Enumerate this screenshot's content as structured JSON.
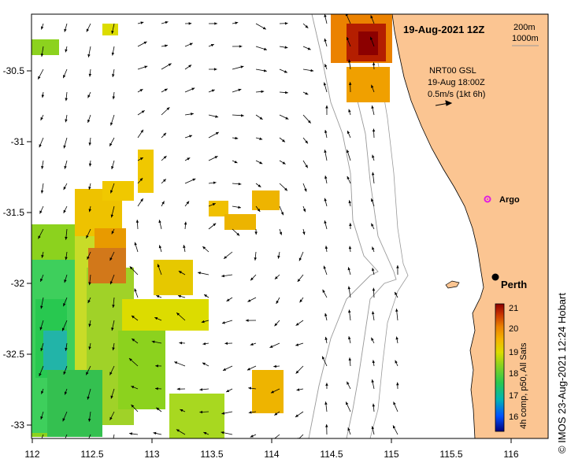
{
  "map": {
    "title": "19-Aug-2021 12Z",
    "isobath_labels": [
      "200m",
      "1000m"
    ],
    "current_label": "NRT00 GSL",
    "current_time": "19-Aug 18:00Z",
    "current_scale": "0.5m/s (1kt 6h)",
    "argo_label": "Argo",
    "city_label": "Perth",
    "land_color": "#fbc592",
    "x_ticks": [
      "112",
      "112.5",
      "113",
      "113.5",
      "114",
      "114.5",
      "115",
      "115.5",
      "116"
    ],
    "y_ticks": [
      "-30.5",
      "-31",
      "-31.5",
      "-32",
      "-32.5",
      "-33"
    ]
  },
  "colorbar": {
    "title": "4h comp, p50, All Sats",
    "ticks": [
      "21",
      "20",
      "19",
      "18",
      "17",
      "16"
    ],
    "colors": [
      "#00007a",
      "#0050ff",
      "#00b4b4",
      "#28c850",
      "#8cd21e",
      "#dcdc00",
      "#f5b400",
      "#eb8200",
      "#c83200",
      "#8c0000"
    ]
  },
  "credit": "© IMOS 23-Aug-2021 12:24 Hobart"
}
